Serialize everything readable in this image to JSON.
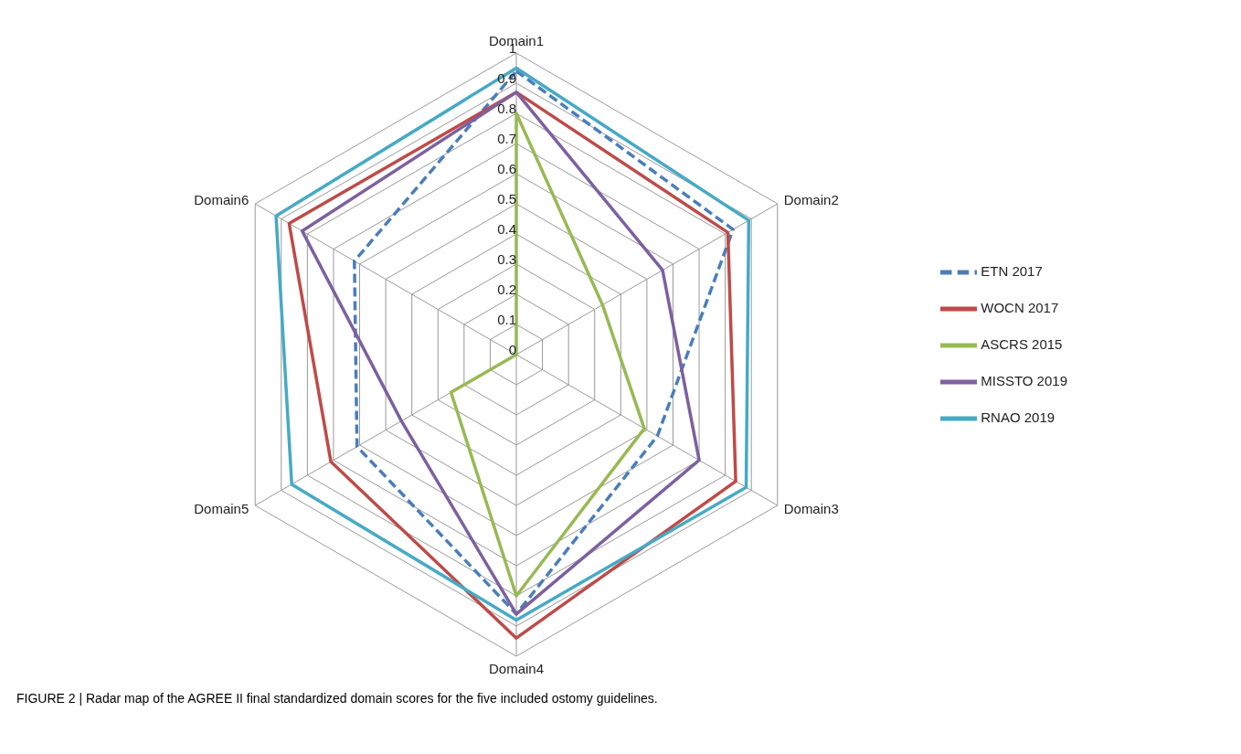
{
  "chart_data": {
    "type": "radar",
    "categories": [
      "Domain1",
      "Domain2",
      "Domain3",
      "Domain4",
      "Domain5",
      "Domain6"
    ],
    "series": [
      {
        "name": "ETN 2017",
        "color": "#4a7ebb",
        "line_style": "dashed",
        "values": [
          0.94,
          0.83,
          0.54,
          0.86,
          0.61,
          0.62
        ]
      },
      {
        "name": "WOCN 2017",
        "color": "#be4b48",
        "values": [
          0.87,
          0.81,
          0.84,
          0.94,
          0.71,
          0.87
        ]
      },
      {
        "name": "ASCRS 2015",
        "color": "#98b954",
        "values": [
          0.8,
          0.33,
          0.49,
          0.8,
          0.25,
          0
        ]
      },
      {
        "name": "MISSTO 2019",
        "color": "#7d60a0",
        "values": [
          0.87,
          0.56,
          0.7,
          0.86,
          0.44,
          0.82
        ]
      },
      {
        "name": "RNAO 2019",
        "color": "#46aac5",
        "values": [
          0.95,
          0.89,
          0.88,
          0.88,
          0.86,
          0.92
        ]
      }
    ],
    "ylim": [
      0,
      1
    ],
    "yticks": [
      0,
      0.1,
      0.2,
      0.3,
      0.4,
      0.5,
      0.6,
      0.7,
      0.8,
      0.9,
      1
    ],
    "grid": true,
    "legend": "right",
    "marker": "none",
    "annotations": [
      "FIGURE 2 | Radar map of the AGREE II final standardized domain scores for the five included ostomy guidelines."
    ]
  }
}
